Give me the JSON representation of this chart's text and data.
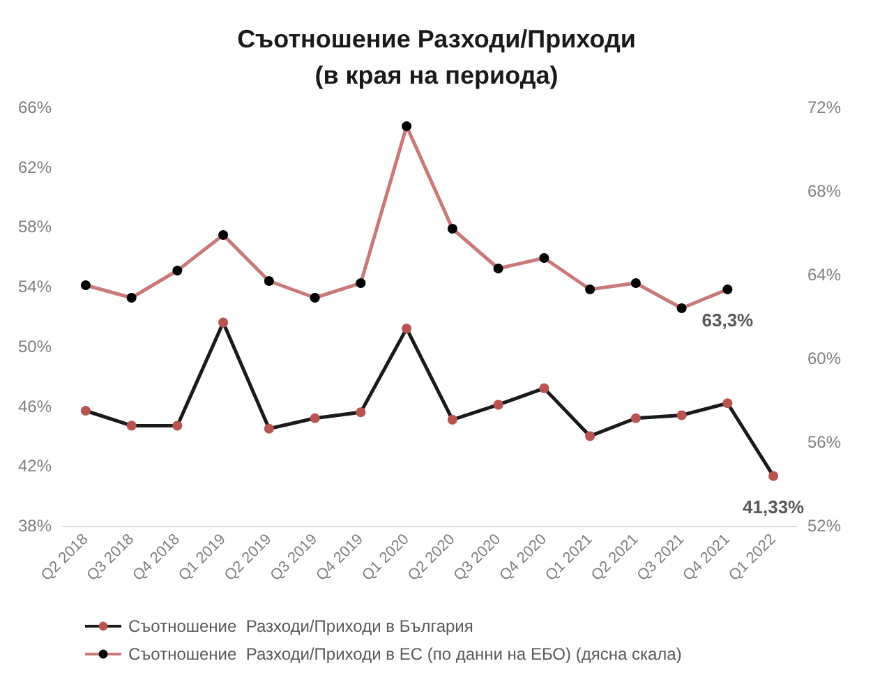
{
  "chart_data": {
    "type": "line",
    "title": "Съотношение Разходи/Приходи\n(в края на периода)",
    "categories": [
      "Q2 2018",
      "Q3 2018",
      "Q4 2018",
      "Q1 2019",
      "Q2 2019",
      "Q3 2019",
      "Q4 2019",
      "Q1 2020",
      "Q2 2020",
      "Q3 2020",
      "Q4 2020",
      "Q1 2021",
      "Q2 2021",
      "Q3 2021",
      "Q4 2021",
      "Q1 2022"
    ],
    "series": [
      {
        "name": "Съотношение  Разходи/Приходи в България",
        "color": "#1a1a1a",
        "colors": [
          "#b85450",
          "#b85450",
          "#b85450",
          "#b85450",
          "#b85450",
          "#b85450",
          "#b85450",
          "#b85450",
          "#b85450",
          "#b85450",
          "#b85450",
          "#b85450",
          "#b85450",
          "#b85450",
          "#b85450",
          "#b85450"
        ],
        "values": [
          45.7,
          44.7,
          44.7,
          51.6,
          44.5,
          45.2,
          45.6,
          51.2,
          45.1,
          46.1,
          47.2,
          44.0,
          45.2,
          45.4,
          46.2,
          41.33
        ],
        "value_labels": [
          null,
          null,
          null,
          null,
          null,
          null,
          null,
          null,
          null,
          null,
          null,
          null,
          null,
          null,
          null,
          "41,33%"
        ]
      },
      {
        "name": "Съотношение  Разходи/Приходи в ЕС (по данни на ЕБО) (дясна скала)",
        "axis": "y2",
        "color": "#c97a78",
        "colors": [
          "#000000",
          "#000000",
          "#000000",
          "#000000",
          "#000000",
          "#000000",
          "#000000",
          "#000000",
          "#000000",
          "#000000",
          "#000000",
          "#000000",
          "#000000",
          "#000000",
          "#000000",
          "#000000"
        ],
        "values": [
          63.5,
          62.9,
          64.2,
          65.9,
          63.7,
          62.9,
          63.6,
          71.1,
          66.2,
          64.3,
          64.8,
          63.3,
          63.6,
          62.4,
          63.3,
          null
        ],
        "value_labels": [
          null,
          null,
          null,
          null,
          null,
          null,
          null,
          null,
          null,
          null,
          null,
          null,
          null,
          null,
          "63,3%",
          null
        ]
      }
    ],
    "ylim": [
      38,
      66
    ],
    "yticks": [
      {
        "value": 38,
        "label": "38%"
      },
      {
        "value": 42,
        "label": "42%"
      },
      {
        "value": 46,
        "label": "46%"
      },
      {
        "value": 50,
        "label": "50%"
      },
      {
        "value": 54,
        "label": "54%"
      },
      {
        "value": 58,
        "label": "58%"
      },
      {
        "value": 62,
        "label": "62%"
      },
      {
        "value": 66,
        "label": "66%"
      }
    ],
    "y2lim": [
      52,
      72
    ],
    "y2ticks": [
      {
        "value": 52,
        "label": "52%"
      },
      {
        "value": 56,
        "label": "56%"
      },
      {
        "value": 60,
        "label": "60%"
      },
      {
        "value": 64,
        "label": "64%"
      },
      {
        "value": 68,
        "label": "68%"
      },
      {
        "value": 72,
        "label": "72%"
      }
    ],
    "grid": false,
    "legend": "bottom",
    "marker": "circle",
    "line_style": "solid"
  }
}
